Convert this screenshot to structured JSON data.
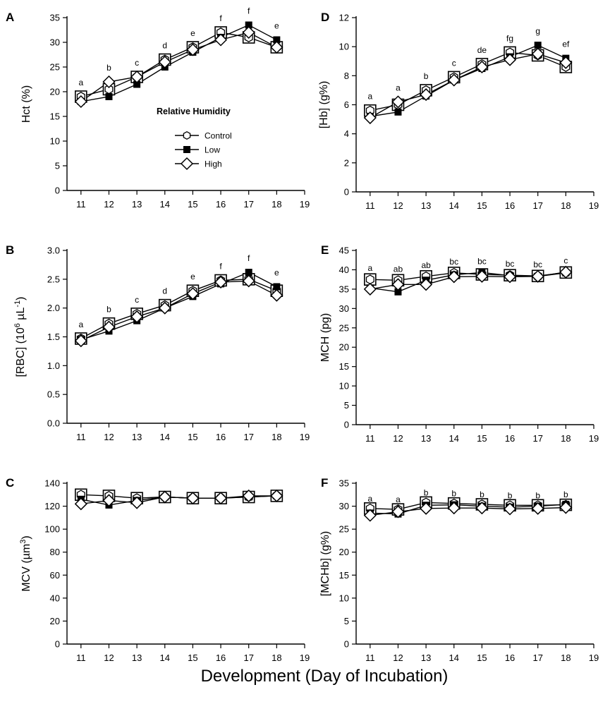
{
  "x_axis_title": "Development (Day of Incubation)",
  "legend": {
    "title": "Relative Humidity",
    "entries": [
      "Control",
      "Low",
      "High"
    ]
  },
  "series_markers": {
    "Control": "open-hexagon",
    "Low": "filled-square",
    "High": "open-diamond"
  },
  "chart_data": [
    {
      "id": "A",
      "type": "line",
      "panel_label": "A",
      "ylabel": "Hct (%)",
      "x": [
        11,
        12,
        13,
        14,
        15,
        16,
        17,
        18
      ],
      "xlim": [
        10.5,
        19
      ],
      "xticks": [
        "11",
        "12",
        "13",
        "14",
        "15",
        "16",
        "17",
        "18",
        "19"
      ],
      "ylim": [
        0,
        35
      ],
      "yticks": [
        "0",
        "5",
        "10",
        "15",
        "20",
        "25",
        "30",
        "35"
      ],
      "significance": [
        "a",
        "b",
        "c",
        "d",
        "e",
        "f",
        "f",
        "e"
      ],
      "series": [
        {
          "name": "Control",
          "values": [
            19,
            20.5,
            23,
            26.5,
            29,
            32,
            31,
            29
          ]
        },
        {
          "name": "Low",
          "values": [
            18,
            19,
            21.5,
            25,
            28,
            31,
            33.5,
            30.5
          ]
        },
        {
          "name": "High",
          "values": [
            18,
            22,
            23,
            26,
            28.5,
            30.5,
            32,
            29
          ]
        }
      ]
    },
    {
      "id": "B",
      "type": "line",
      "panel_label": "B",
      "ylabel": "[RBC] (10^6 µL^-1)",
      "x": [
        11,
        12,
        13,
        14,
        15,
        16,
        17,
        18
      ],
      "xlim": [
        10.5,
        19
      ],
      "xticks": [
        "11",
        "12",
        "13",
        "14",
        "15",
        "16",
        "17",
        "18",
        "19"
      ],
      "ylim": [
        0,
        3
      ],
      "yticks": [
        "0.0",
        "0.5",
        "1.0",
        "1.5",
        "2.0",
        "2.5",
        "3.0"
      ],
      "significance": [
        "a",
        "b",
        "c",
        "d",
        "e",
        "f",
        "f",
        "e"
      ],
      "series": [
        {
          "name": "Control",
          "values": [
            1.47,
            1.73,
            1.9,
            2.05,
            2.3,
            2.48,
            2.5,
            2.3
          ]
        },
        {
          "name": "Low",
          "values": [
            1.45,
            1.6,
            1.78,
            2.0,
            2.2,
            2.42,
            2.62,
            2.37
          ]
        },
        {
          "name": "High",
          "values": [
            1.43,
            1.67,
            1.85,
            2.0,
            2.25,
            2.45,
            2.47,
            2.22
          ]
        }
      ]
    },
    {
      "id": "C",
      "type": "line",
      "panel_label": "C",
      "ylabel": "MCV (µm^3)",
      "x": [
        11,
        12,
        13,
        14,
        15,
        16,
        17,
        18
      ],
      "xlim": [
        10.5,
        19
      ],
      "xticks": [
        "11",
        "12",
        "13",
        "14",
        "15",
        "16",
        "17",
        "18",
        "19"
      ],
      "ylim": [
        0,
        140
      ],
      "yticks": [
        "0",
        "20",
        "40",
        "60",
        "80",
        "100",
        "120",
        "140"
      ],
      "significance": [],
      "series": [
        {
          "name": "Control",
          "values": [
            130,
            129,
            127,
            128,
            127,
            127,
            128,
            129
          ]
        },
        {
          "name": "Low",
          "values": [
            126,
            121,
            125,
            128,
            127,
            127,
            128,
            129
          ]
        },
        {
          "name": "High",
          "values": [
            122,
            125,
            123,
            128,
            127,
            127,
            129,
            129
          ]
        }
      ]
    },
    {
      "id": "D",
      "type": "line",
      "panel_label": "D",
      "ylabel": "[Hb] (g%)",
      "x": [
        11,
        12,
        13,
        14,
        15,
        16,
        17,
        18
      ],
      "xlim": [
        10.5,
        19
      ],
      "xticks": [
        "11",
        "12",
        "13",
        "14",
        "15",
        "16",
        "17",
        "18",
        "19"
      ],
      "ylim": [
        0,
        12
      ],
      "yticks": [
        "0",
        "2",
        "4",
        "6",
        "8",
        "10",
        "12"
      ],
      "significance": [
        "a",
        "a",
        "b",
        "c",
        "de",
        "fg",
        "g",
        "ef"
      ],
      "series": [
        {
          "name": "Control",
          "values": [
            5.6,
            6.0,
            7.0,
            7.9,
            8.8,
            9.6,
            9.4,
            8.6
          ]
        },
        {
          "name": "Low",
          "values": [
            5.2,
            5.5,
            6.6,
            7.7,
            8.5,
            9.3,
            10.1,
            9.2
          ]
        },
        {
          "name": "High",
          "values": [
            5.1,
            6.2,
            6.7,
            7.7,
            8.6,
            9.1,
            9.5,
            8.9
          ]
        }
      ]
    },
    {
      "id": "E",
      "type": "line",
      "panel_label": "E",
      "ylabel": "MCH (pg)",
      "x": [
        11,
        12,
        13,
        14,
        15,
        16,
        17,
        18
      ],
      "xlim": [
        10.5,
        19
      ],
      "xticks": [
        "11",
        "12",
        "13",
        "14",
        "15",
        "16",
        "17",
        "18",
        "19"
      ],
      "ylim": [
        0,
        45
      ],
      "yticks": [
        "0",
        "5",
        "10",
        "15",
        "20",
        "25",
        "30",
        "35",
        "40",
        "45"
      ],
      "significance": [
        "a",
        "ab",
        "ab",
        "bc",
        "bc",
        "bc",
        "bc",
        "c"
      ],
      "series": [
        {
          "name": "Control",
          "values": [
            37.5,
            37.3,
            38.3,
            39.2,
            38.8,
            38.6,
            38.4,
            39.3
          ]
        },
        {
          "name": "Low",
          "values": [
            35.3,
            34.3,
            37.3,
            38.7,
            39.3,
            38.5,
            38.3,
            39.2
          ]
        },
        {
          "name": "High",
          "values": [
            35.0,
            36.2,
            36.2,
            38.2,
            38.3,
            38.2,
            38.3,
            39.4
          ]
        }
      ]
    },
    {
      "id": "F",
      "type": "line",
      "panel_label": "F",
      "ylabel": "[MCHb] (g%)",
      "x": [
        11,
        12,
        13,
        14,
        15,
        16,
        17,
        18
      ],
      "xlim": [
        10.5,
        19
      ],
      "xticks": [
        "11",
        "12",
        "13",
        "14",
        "15",
        "16",
        "17",
        "18",
        "19"
      ],
      "ylim": [
        0,
        35
      ],
      "yticks": [
        "0",
        "5",
        "10",
        "15",
        "20",
        "25",
        "30",
        "35"
      ],
      "significance": [
        "a",
        "a",
        "b",
        "b",
        "b",
        "b",
        "b",
        "b"
      ],
      "series": [
        {
          "name": "Control",
          "values": [
            29.5,
            29.3,
            30.8,
            30.6,
            30.4,
            30.2,
            30.2,
            30.3
          ]
        },
        {
          "name": "Low",
          "values": [
            28.5,
            28.3,
            30.2,
            30.3,
            30.0,
            29.8,
            30.0,
            30.4
          ]
        },
        {
          "name": "High",
          "values": [
            28.0,
            28.8,
            29.5,
            29.6,
            29.6,
            29.4,
            29.5,
            29.7
          ]
        }
      ]
    }
  ]
}
